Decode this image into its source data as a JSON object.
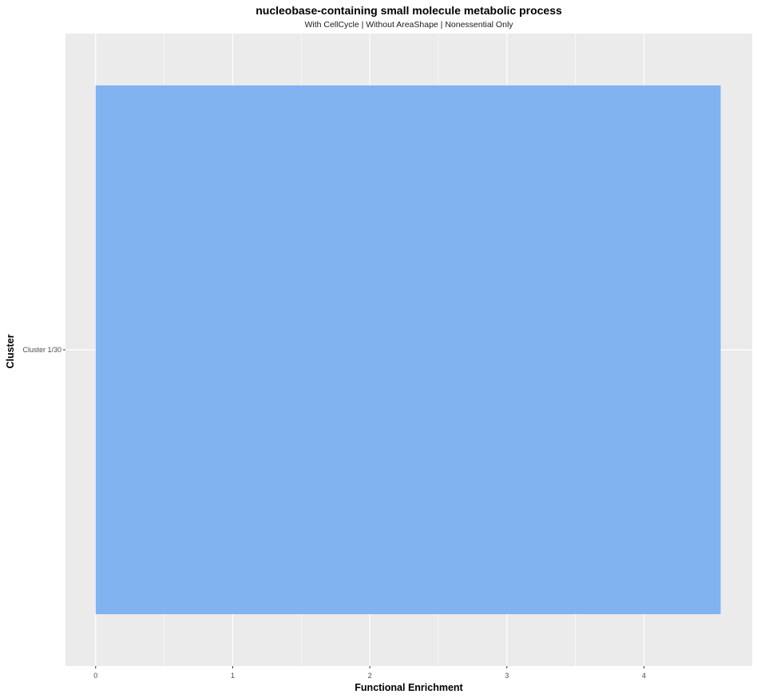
{
  "chart_data": {
    "type": "bar",
    "orientation": "horizontal",
    "title": "nucleobase-containing small molecule metabolic process",
    "subtitle": "With CellCycle | Without AreaShape | Nonessential Only",
    "xlabel": "Functional Enrichment",
    "ylabel": "Cluster",
    "categories": [
      "Cluster 1/30"
    ],
    "values": [
      4.56
    ],
    "xlim": [
      -0.22,
      4.79
    ],
    "xticks": [
      0,
      1,
      2,
      3,
      4
    ],
    "xtick_labels": [
      "0",
      "1",
      "2",
      "3",
      "4"
    ],
    "grid": true,
    "bar_color": "#80B3EF",
    "panel_color": "#EBEBEB",
    "grid_color": "#FFFFFF"
  }
}
